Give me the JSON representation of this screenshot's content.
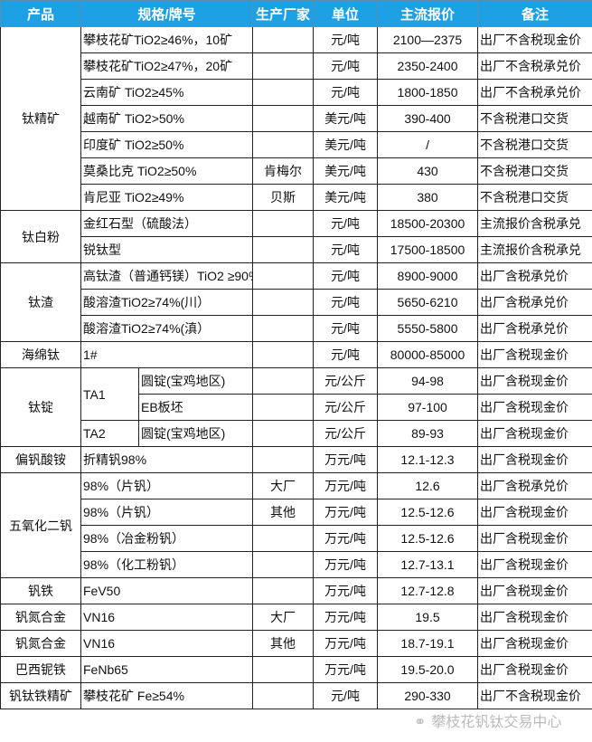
{
  "headers": [
    "产品",
    "规格/牌号",
    "生产厂家",
    "单位",
    "主流报价",
    "备注"
  ],
  "header_color": "#1ea0e4",
  "groups": [
    {
      "product": "钛精矿",
      "rows": [
        {
          "spec": "攀枝花矿TiO2≥46%，10矿",
          "maker": "",
          "unit": "元/吨",
          "price": "2100—2375",
          "note": "出厂不含税现金价"
        },
        {
          "spec": "攀枝花矿TiO2≥47%，20矿",
          "maker": "",
          "unit": "元/吨",
          "price": "2350-2400",
          "note": "出厂不含税承兑价"
        },
        {
          "spec": "云南矿 TiO2≥45%",
          "maker": "",
          "unit": "元/吨",
          "price": "1800-1850",
          "note": "出厂不含税承兑价"
        },
        {
          "spec": "越南矿 TiO2>50%",
          "maker": "",
          "unit": "美元/吨",
          "price": "390-400",
          "note": "不含税港口交货"
        },
        {
          "spec": "印度矿 TiO2≥50%",
          "maker": "",
          "unit": "美元/吨",
          "price": "/",
          "note": "不含税港口交货"
        },
        {
          "spec": "莫桑比克 TiO2≥50%",
          "maker": "肯梅尔",
          "unit": "美元/吨",
          "price": "430",
          "note": "不含税港口交货"
        },
        {
          "spec": "肯尼亚 TiO2≥49%",
          "maker": "贝斯",
          "unit": "美元/吨",
          "price": "380",
          "note": "不含税港口交货"
        }
      ]
    },
    {
      "product": "钛白粉",
      "rows": [
        {
          "spec": "金红石型（硫酸法）",
          "maker": "",
          "unit": "元/吨",
          "price": "18500-20300",
          "note": "主流报价含税承兑"
        },
        {
          "spec": "锐钛型",
          "maker": "",
          "unit": "元/吨",
          "price": "17500-18500",
          "note": "主流报价含税承兑"
        }
      ]
    },
    {
      "product": "钛渣",
      "rows": [
        {
          "spec": "高钛渣（普通钙镁）TiO2 ≥90%",
          "maker": "",
          "unit": "元/吨",
          "price": "8900-9000",
          "note": "出厂含税承兑价"
        },
        {
          "spec": "酸溶渣TiO2≥74%(川）",
          "maker": "",
          "unit": "元/吨",
          "price": "5650-6210",
          "note": "出厂含税承兑价"
        },
        {
          "spec": "酸溶渣TiO2≥74%(滇）",
          "maker": "",
          "unit": "元/吨",
          "price": "5550-5800",
          "note": "出厂含税承兑价"
        }
      ]
    },
    {
      "product": "海绵钛",
      "rows": [
        {
          "spec": "1#",
          "maker": "",
          "unit": "元/吨",
          "price": "80000-85000",
          "note": "出厂含税现金价"
        }
      ]
    },
    {
      "product": "钛锭",
      "grades": [
        {
          "grade": "TA1",
          "rows": [
            {
              "spec": "圆锭(宝鸡地区)",
              "unit": "元/公斤",
              "price": "94-98",
              "note": "出厂含税现金价"
            },
            {
              "spec": "EB板坯",
              "unit": "元/公斤",
              "price": "97-100",
              "note": "出厂含税现金价"
            }
          ]
        },
        {
          "grade": "TA2",
          "rows": [
            {
              "spec": "圆锭(宝鸡地区)",
              "unit": "元/公斤",
              "price": "89-93",
              "note": "出厂含税现金价"
            }
          ]
        }
      ]
    },
    {
      "product": "偏钒酸铵",
      "rows": [
        {
          "spec": "折精钒98%",
          "maker": "",
          "unit": "万元/吨",
          "price": "12.1-12.3",
          "note": "出厂含税现金价"
        }
      ]
    },
    {
      "product": "五氧化二钒",
      "rows": [
        {
          "spec": "98%（片钒）",
          "maker": "大厂",
          "unit": "万元/吨",
          "price": "12.6",
          "note": "出厂含税承兑价"
        },
        {
          "spec": "98%（片钒）",
          "maker": "其他",
          "unit": "万元/吨",
          "price": "12.5-12.6",
          "note": "出厂含税现金价"
        },
        {
          "spec": "98%（冶金粉钒）",
          "maker": "",
          "unit": "万元/吨",
          "price": "12.5-12.6",
          "note": "出厂含税现金价"
        },
        {
          "spec": "98%（化工粉钒）",
          "maker": "",
          "unit": "万元/吨",
          "price": "12.7-13.1",
          "note": "出厂含税现金价"
        }
      ]
    },
    {
      "product": "钒铁",
      "rows": [
        {
          "spec": "FeV50",
          "maker": "",
          "unit": "万元/吨",
          "price": "12.7-12.8",
          "note": "出厂含税现金价"
        }
      ]
    },
    {
      "product": "钒氮合金",
      "rows": [
        {
          "spec": "VN16",
          "maker": "大厂",
          "unit": "万元/吨",
          "price": "19.5",
          "note": "出厂含税现金价"
        }
      ]
    },
    {
      "product": "钒氮合金",
      "rows": [
        {
          "spec": "VN16",
          "maker": "其他",
          "unit": "万元/吨",
          "price": "18.7-19.1",
          "note": "出厂含税现金价"
        }
      ]
    },
    {
      "product": "巴西铌铁",
      "rows": [
        {
          "spec": "FeNb65",
          "maker": "",
          "unit": "万元/吨",
          "price": "19.5-20.0",
          "note": "出厂含税现金价"
        }
      ]
    },
    {
      "product": "钒钛铁精矿",
      "rows": [
        {
          "spec": "攀枝花矿 Fe≥54%",
          "maker": "",
          "unit": "元/吨",
          "price": "290-330",
          "note": "出厂不含税现金价"
        }
      ]
    }
  ],
  "watermark": {
    "icon": "wechat-icon",
    "text": "攀枝花钒钛交易中心"
  }
}
